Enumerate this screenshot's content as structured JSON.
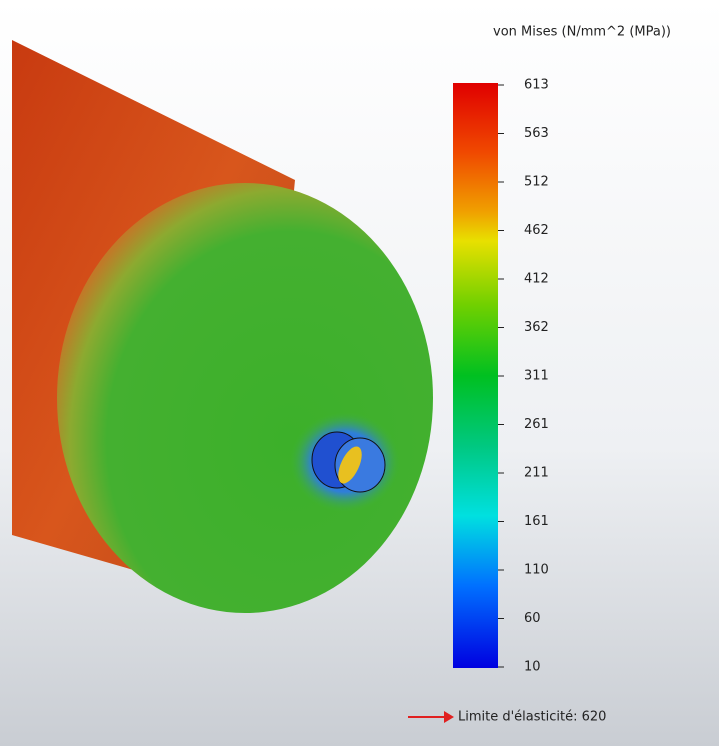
{
  "legend": {
    "title": "von Mises (N/mm^2 (MPa))",
    "ticks": [
      "613",
      "563",
      "512",
      "462",
      "412",
      "362",
      "311",
      "261",
      "211",
      "161",
      "110",
      "60",
      "10"
    ],
    "yield_label": "Limite d'élasticité: 620"
  }
}
